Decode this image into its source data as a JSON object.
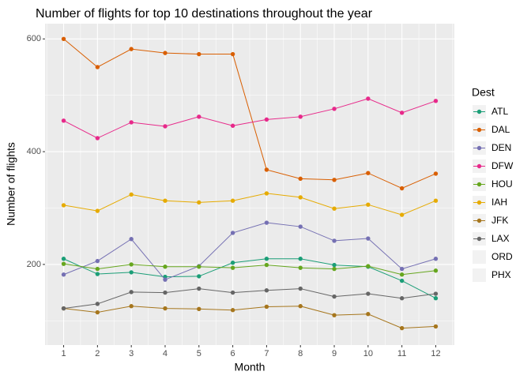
{
  "chart_data": {
    "type": "line",
    "title": "Number of flights for top 10 destinations throughout the year",
    "x_label": "Month",
    "y_label": "Number of flights",
    "legend_title": "Dest",
    "x": [
      1,
      2,
      3,
      4,
      5,
      6,
      7,
      8,
      9,
      10,
      11,
      12
    ],
    "xlim": [
      0.45,
      12.55
    ],
    "xticks": [
      1,
      2,
      3,
      4,
      5,
      6,
      7,
      8,
      9,
      10,
      11,
      12
    ],
    "ylim": [
      57,
      627
    ],
    "yticks": [
      200,
      400,
      600
    ],
    "grid": true,
    "legend_position": "right",
    "series": [
      {
        "name": "ATL",
        "color": "#1b9e77",
        "values": [
          210,
          183,
          186,
          178,
          179,
          203,
          210,
          210,
          199,
          196,
          171,
          140
        ]
      },
      {
        "name": "DAL",
        "color": "#d95f02",
        "values": [
          600,
          550,
          582,
          575,
          573,
          573,
          368,
          352,
          350,
          362,
          335,
          361
        ]
      },
      {
        "name": "DEN",
        "color": "#7570b3",
        "values": [
          182,
          206,
          245,
          173,
          197,
          256,
          274,
          267,
          242,
          246,
          192,
          210
        ]
      },
      {
        "name": "DFW",
        "color": "#e7298a",
        "values": [
          455,
          424,
          452,
          445,
          462,
          446,
          457,
          462,
          476,
          494,
          469,
          490
        ]
      },
      {
        "name": "HOU",
        "color": "#66a61e",
        "values": [
          201,
          192,
          200,
          196,
          196,
          194,
          199,
          194,
          192,
          197,
          182,
          189
        ]
      },
      {
        "name": "IAH",
        "color": "#e6ab02",
        "values": [
          305,
          295,
          324,
          313,
          310,
          313,
          326,
          319,
          299,
          306,
          288,
          313
        ]
      },
      {
        "name": "JFK",
        "color": "#a6761d",
        "values": [
          122,
          115,
          126,
          122,
          121,
          119,
          125,
          126,
          110,
          112,
          87,
          90
        ]
      },
      {
        "name": "LAX",
        "color": "#666666",
        "values": [
          122,
          130,
          151,
          150,
          157,
          150,
          154,
          157,
          143,
          148,
          140,
          148
        ]
      },
      {
        "name": "ORD",
        "values": [
          null,
          null,
          null,
          null,
          null,
          null,
          null,
          null,
          null,
          null,
          null,
          null
        ]
      },
      {
        "name": "PHX",
        "values": [
          null,
          null,
          null,
          null,
          null,
          null,
          null,
          null,
          null,
          null,
          null,
          null
        ]
      }
    ]
  }
}
